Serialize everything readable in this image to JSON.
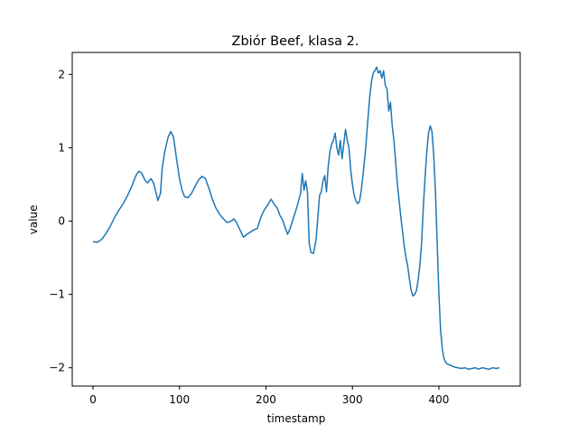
{
  "chart_data": {
    "type": "line",
    "title": "Zbiór Beef, klasa 2.",
    "xlabel": "timestamp",
    "ylabel": "value",
    "xlim": [
      -24,
      494
    ],
    "ylim": [
      -2.25,
      2.3
    ],
    "xticks": [
      0,
      100,
      200,
      300,
      400
    ],
    "yticks": [
      -2,
      -1,
      0,
      1,
      2
    ],
    "xtick_labels": [
      "0",
      "100",
      "200",
      "300",
      "400"
    ],
    "ytick_labels": [
      "−2",
      "−1",
      "0",
      "1",
      "2"
    ],
    "grid": false,
    "series": [
      {
        "color": "#1f77b4",
        "points": [
          [
            0,
            -0.28
          ],
          [
            5,
            -0.29
          ],
          [
            10,
            -0.25
          ],
          [
            15,
            -0.17
          ],
          [
            20,
            -0.07
          ],
          [
            25,
            0.05
          ],
          [
            30,
            0.15
          ],
          [
            35,
            0.24
          ],
          [
            40,
            0.35
          ],
          [
            45,
            0.48
          ],
          [
            50,
            0.63
          ],
          [
            53,
            0.68
          ],
          [
            56,
            0.66
          ],
          [
            60,
            0.56
          ],
          [
            63,
            0.52
          ],
          [
            67,
            0.58
          ],
          [
            70,
            0.52
          ],
          [
            73,
            0.38
          ],
          [
            75,
            0.28
          ],
          [
            78,
            0.38
          ],
          [
            80,
            0.72
          ],
          [
            83,
            0.95
          ],
          [
            87,
            1.15
          ],
          [
            90,
            1.22
          ],
          [
            93,
            1.15
          ],
          [
            96,
            0.9
          ],
          [
            100,
            0.58
          ],
          [
            103,
            0.42
          ],
          [
            106,
            0.33
          ],
          [
            110,
            0.32
          ],
          [
            114,
            0.38
          ],
          [
            118,
            0.47
          ],
          [
            122,
            0.56
          ],
          [
            126,
            0.61
          ],
          [
            130,
            0.58
          ],
          [
            134,
            0.45
          ],
          [
            138,
            0.3
          ],
          [
            142,
            0.18
          ],
          [
            146,
            0.1
          ],
          [
            150,
            0.04
          ],
          [
            155,
            -0.02
          ],
          [
            160,
            0.0
          ],
          [
            163,
            0.03
          ],
          [
            166,
            -0.02
          ],
          [
            170,
            -0.12
          ],
          [
            174,
            -0.22
          ],
          [
            178,
            -0.18
          ],
          [
            182,
            -0.15
          ],
          [
            186,
            -0.12
          ],
          [
            190,
            -0.1
          ],
          [
            194,
            0.05
          ],
          [
            198,
            0.15
          ],
          [
            202,
            0.22
          ],
          [
            206,
            0.3
          ],
          [
            210,
            0.22
          ],
          [
            213,
            0.18
          ],
          [
            216,
            0.08
          ],
          [
            219,
            0.02
          ],
          [
            222,
            -0.08
          ],
          [
            225,
            -0.18
          ],
          [
            228,
            -0.1
          ],
          [
            232,
            0.05
          ],
          [
            236,
            0.2
          ],
          [
            240,
            0.38
          ],
          [
            242,
            0.65
          ],
          [
            244,
            0.42
          ],
          [
            246,
            0.55
          ],
          [
            248,
            0.4
          ],
          [
            249,
            0.05
          ],
          [
            250,
            -0.3
          ],
          [
            252,
            -0.43
          ],
          [
            255,
            -0.44
          ],
          [
            258,
            -0.25
          ],
          [
            260,
            0.05
          ],
          [
            262,
            0.35
          ],
          [
            264,
            0.4
          ],
          [
            266,
            0.55
          ],
          [
            268,
            0.62
          ],
          [
            270,
            0.4
          ],
          [
            272,
            0.75
          ],
          [
            274,
            0.95
          ],
          [
            276,
            1.05
          ],
          [
            278,
            1.1
          ],
          [
            280,
            1.2
          ],
          [
            282,
            1.0
          ],
          [
            284,
            0.9
          ],
          [
            286,
            1.1
          ],
          [
            288,
            0.85
          ],
          [
            290,
            1.05
          ],
          [
            292,
            1.25
          ],
          [
            294,
            1.1
          ],
          [
            296,
            1.0
          ],
          [
            298,
            0.7
          ],
          [
            300,
            0.5
          ],
          [
            302,
            0.35
          ],
          [
            304,
            0.28
          ],
          [
            306,
            0.24
          ],
          [
            308,
            0.26
          ],
          [
            310,
            0.4
          ],
          [
            312,
            0.6
          ],
          [
            315,
            0.95
          ],
          [
            318,
            1.4
          ],
          [
            320,
            1.7
          ],
          [
            322,
            1.9
          ],
          [
            324,
            2.02
          ],
          [
            326,
            2.05
          ],
          [
            328,
            2.1
          ],
          [
            330,
            2.02
          ],
          [
            332,
            2.05
          ],
          [
            334,
            1.95
          ],
          [
            336,
            2.05
          ],
          [
            338,
            1.85
          ],
          [
            340,
            1.8
          ],
          [
            342,
            1.5
          ],
          [
            344,
            1.62
          ],
          [
            346,
            1.3
          ],
          [
            348,
            1.1
          ],
          [
            350,
            0.8
          ],
          [
            352,
            0.5
          ],
          [
            354,
            0.28
          ],
          [
            356,
            0.05
          ],
          [
            358,
            -0.15
          ],
          [
            360,
            -0.35
          ],
          [
            362,
            -0.5
          ],
          [
            364,
            -0.62
          ],
          [
            366,
            -0.8
          ],
          [
            368,
            -0.95
          ],
          [
            370,
            -1.02
          ],
          [
            372,
            -1.0
          ],
          [
            374,
            -0.95
          ],
          [
            376,
            -0.8
          ],
          [
            378,
            -0.6
          ],
          [
            380,
            -0.3
          ],
          [
            382,
            0.2
          ],
          [
            384,
            0.6
          ],
          [
            386,
            0.95
          ],
          [
            388,
            1.2
          ],
          [
            390,
            1.3
          ],
          [
            392,
            1.22
          ],
          [
            394,
            0.9
          ],
          [
            396,
            0.4
          ],
          [
            398,
            -0.3
          ],
          [
            400,
            -1.0
          ],
          [
            402,
            -1.5
          ],
          [
            404,
            -1.75
          ],
          [
            406,
            -1.88
          ],
          [
            408,
            -1.93
          ],
          [
            410,
            -1.95
          ],
          [
            414,
            -1.97
          ],
          [
            418,
            -1.99
          ],
          [
            422,
            -2.0
          ],
          [
            426,
            -2.01
          ],
          [
            430,
            -2.0
          ],
          [
            434,
            -2.02
          ],
          [
            438,
            -2.01
          ],
          [
            442,
            -2.0
          ],
          [
            446,
            -2.02
          ],
          [
            450,
            -2.0
          ],
          [
            454,
            -2.01
          ],
          [
            458,
            -2.02
          ],
          [
            462,
            -2.0
          ],
          [
            466,
            -2.01
          ],
          [
            470,
            -2.0
          ]
        ]
      }
    ]
  }
}
